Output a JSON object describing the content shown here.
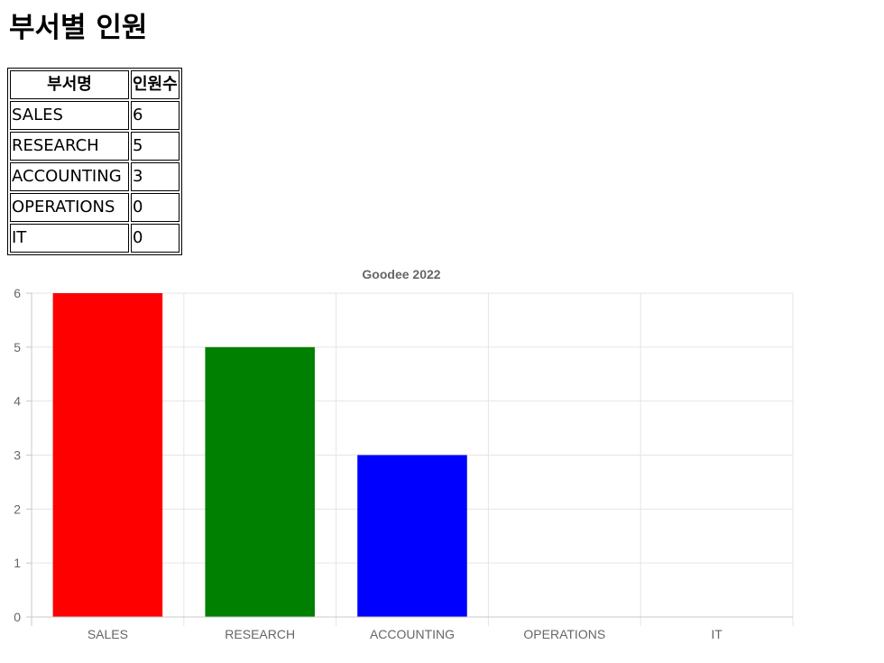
{
  "page": {
    "title": "부서별 인원"
  },
  "table": {
    "headers": [
      "부서명",
      "인원수"
    ],
    "rows": [
      [
        "SALES",
        "6"
      ],
      [
        "RESEARCH",
        "5"
      ],
      [
        "ACCOUNTING",
        "3"
      ],
      [
        "OPERATIONS",
        "0"
      ],
      [
        "IT",
        "0"
      ]
    ]
  },
  "chart_data": {
    "type": "bar",
    "title": "Goodee 2022",
    "categories": [
      "SALES",
      "RESEARCH",
      "ACCOUNTING",
      "OPERATIONS",
      "IT"
    ],
    "values": [
      6,
      5,
      3,
      0,
      0
    ],
    "colors": [
      "#ff0000",
      "#008000",
      "#0000ff",
      "#ffff00",
      "#ffa500"
    ],
    "xlabel": "",
    "ylabel": "",
    "ylim": [
      0,
      6
    ],
    "yticks": [
      0,
      1,
      2,
      3,
      4,
      5,
      6
    ],
    "grid": true,
    "legend": "none",
    "colors_theme": {
      "grid": "#e5e5e5",
      "axis": "#c8c8c8",
      "text": "#666666"
    }
  }
}
